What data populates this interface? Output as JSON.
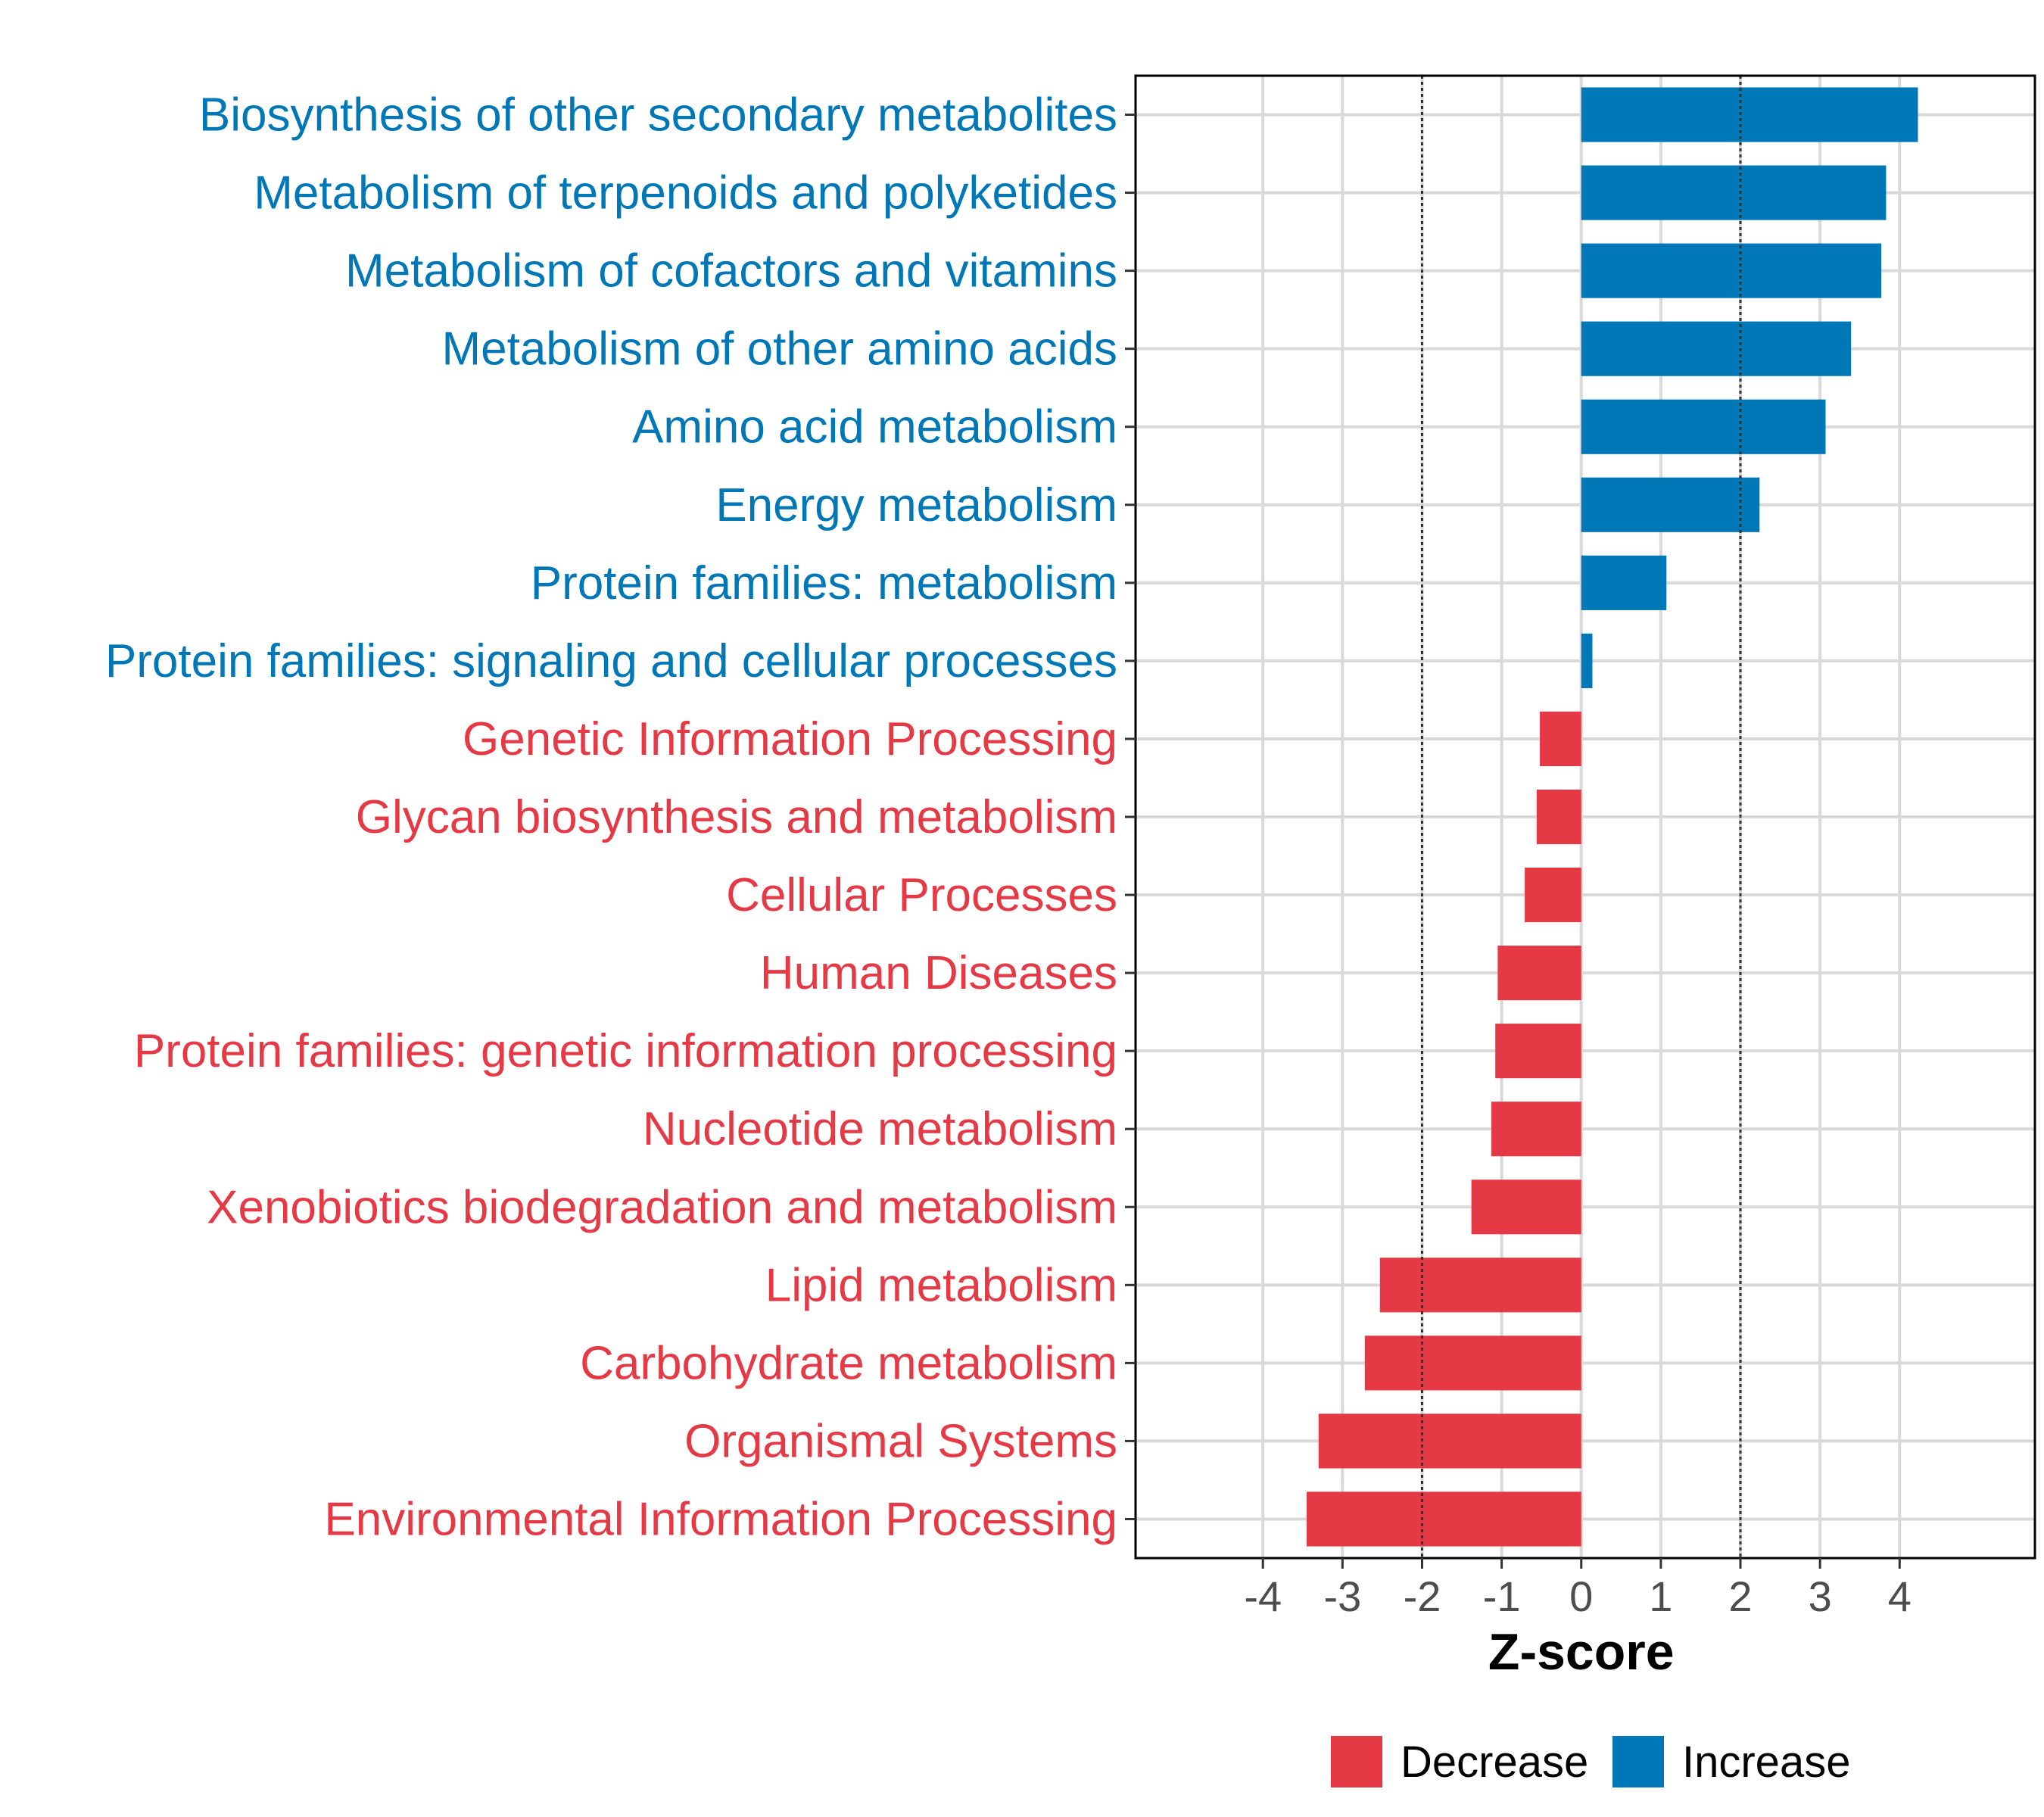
{
  "chart_data": {
    "type": "bar",
    "orientation": "horizontal",
    "categories": [
      "Biosynthesis of other secondary metabolites",
      "Metabolism of terpenoids and polyketides",
      "Metabolism of cofactors and vitamins",
      "Metabolism of other amino acids",
      "Amino acid metabolism",
      "Energy metabolism",
      "Protein families: metabolism",
      "Protein families: signaling and cellular processes",
      "Genetic Information Processing",
      "Glycan biosynthesis and metabolism",
      "Cellular Processes",
      "Human Diseases",
      "Protein families: genetic information processing",
      "Nucleotide metabolism",
      "Xenobiotics biodegradation and metabolism",
      "Lipid metabolism",
      "Carbohydrate metabolism",
      "Organismal Systems",
      "Environmental Information Processing"
    ],
    "values": [
      4.23,
      3.83,
      3.77,
      3.39,
      3.07,
      2.24,
      1.07,
      0.14,
      -0.52,
      -0.56,
      -0.71,
      -1.05,
      -1.08,
      -1.13,
      -1.38,
      -2.53,
      -2.72,
      -3.3,
      -3.45
    ],
    "groups": [
      "Increase",
      "Increase",
      "Increase",
      "Increase",
      "Increase",
      "Increase",
      "Increase",
      "Increase",
      "Decrease",
      "Decrease",
      "Decrease",
      "Decrease",
      "Decrease",
      "Decrease",
      "Decrease",
      "Decrease",
      "Decrease",
      "Decrease",
      "Decrease"
    ],
    "xlabel": "Z-score",
    "ylabel": "",
    "xlim": [
      -5.6,
      5.7
    ],
    "xticks": [
      -4,
      -3,
      -2,
      -1,
      0,
      1,
      2,
      3,
      4
    ],
    "xtick_labels": [
      "-4",
      "-3",
      "-2",
      "-1",
      "0",
      "1",
      "2",
      "3",
      "4"
    ],
    "reference_lines": [
      -2,
      2
    ],
    "grid": true,
    "legend": {
      "position": "bottom",
      "entries": [
        {
          "label": "Decrease",
          "color": "#E63946"
        },
        {
          "label": "Increase",
          "color": "#0077B6"
        }
      ]
    },
    "colors": {
      "Decrease": "#E63946",
      "Increase": "#0077B6"
    }
  }
}
